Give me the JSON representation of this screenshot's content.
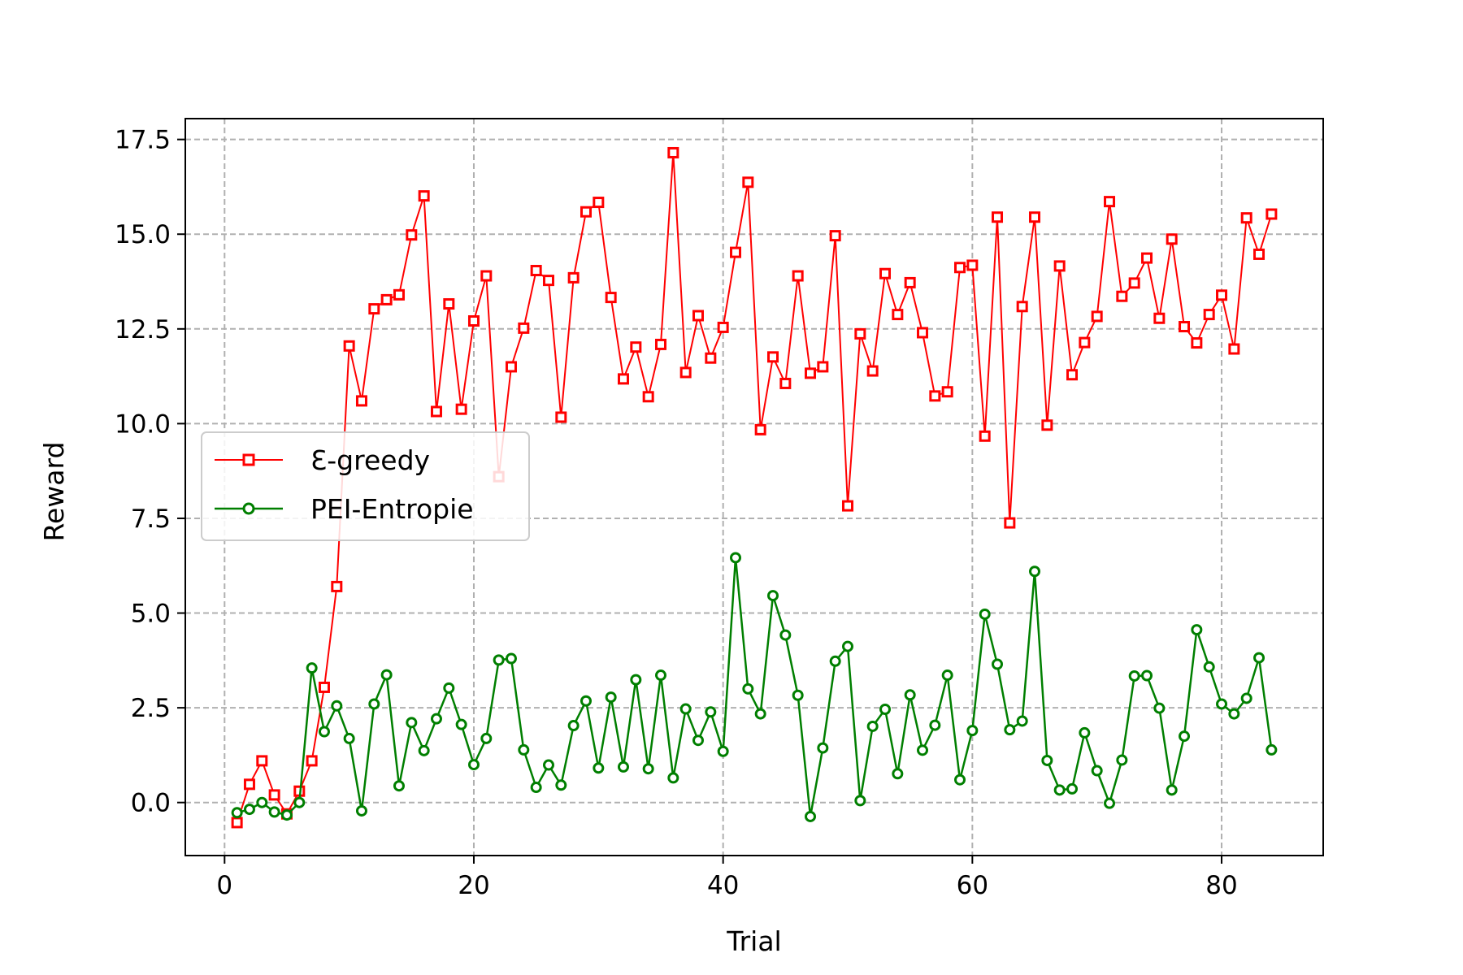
{
  "chart_data": {
    "type": "line",
    "xlabel": "Trial",
    "ylabel": "Reward",
    "xlim": [
      -3.15,
      88.15
    ],
    "ylim": [
      -1.4,
      18.05
    ],
    "xticks": [
      0,
      20,
      40,
      60,
      80
    ],
    "yticks": [
      0.0,
      2.5,
      5.0,
      7.5,
      10.0,
      12.5,
      15.0,
      17.5
    ],
    "xtick_labels": [
      "0",
      "20",
      "40",
      "60",
      "80"
    ],
    "ytick_labels": [
      "0.0",
      "2.5",
      "5.0",
      "7.5",
      "10.0",
      "12.5",
      "15.0",
      "17.5"
    ],
    "grid": true,
    "legend_position": "center-left",
    "x": [
      1,
      2,
      3,
      4,
      5,
      6,
      7,
      8,
      9,
      10,
      11,
      12,
      13,
      14,
      15,
      16,
      17,
      18,
      19,
      20,
      21,
      22,
      23,
      24,
      25,
      26,
      27,
      28,
      29,
      30,
      31,
      32,
      33,
      34,
      35,
      36,
      37,
      38,
      39,
      40,
      41,
      42,
      43,
      44,
      45,
      46,
      47,
      48,
      49,
      50,
      51,
      52,
      53,
      54,
      55,
      56,
      57,
      58,
      59,
      60,
      61,
      62,
      63,
      64,
      65,
      66,
      67,
      68,
      69,
      70,
      71,
      72,
      73,
      74,
      75,
      76,
      77,
      78,
      79,
      80,
      81,
      82,
      83,
      84
    ],
    "series": [
      {
        "name": "Ɛ-greedy",
        "color": "#ff0000",
        "marker": "square",
        "values": [
          -0.53,
          0.48,
          1.1,
          0.2,
          -0.3,
          0.3,
          1.1,
          3.04,
          5.7,
          12.05,
          10.6,
          13.03,
          13.27,
          13.4,
          14.98,
          16.01,
          10.32,
          13.16,
          10.38,
          12.71,
          13.9,
          8.6,
          11.5,
          12.52,
          14.04,
          13.78,
          10.17,
          13.85,
          15.59,
          15.84,
          13.33,
          11.18,
          12.02,
          10.71,
          12.09,
          17.15,
          11.35,
          12.85,
          11.73,
          12.54,
          14.52,
          16.37,
          9.84,
          11.76,
          11.06,
          13.9,
          11.33,
          11.5,
          14.96,
          7.83,
          12.37,
          11.39,
          13.96,
          12.88,
          13.72,
          12.4,
          10.73,
          10.84,
          14.12,
          14.18,
          9.67,
          15.45,
          7.38,
          13.09,
          15.45,
          9.96,
          14.16,
          11.29,
          12.14,
          12.83,
          15.86,
          13.36,
          13.71,
          14.37,
          12.78,
          14.87,
          12.56,
          12.13,
          12.88,
          13.39,
          11.97,
          15.43,
          14.47,
          15.53
        ]
      },
      {
        "name": "PEI-Entropie",
        "color": "#007f00",
        "marker": "circle",
        "values": [
          -0.27,
          -0.18,
          0.0,
          -0.25,
          -0.33,
          0.0,
          3.55,
          1.87,
          2.55,
          1.69,
          -0.22,
          2.6,
          3.37,
          0.44,
          2.11,
          1.37,
          2.21,
          3.02,
          2.06,
          1.0,
          1.69,
          3.76,
          3.8,
          1.39,
          0.4,
          0.99,
          0.46,
          2.03,
          2.68,
          0.91,
          2.78,
          0.94,
          3.24,
          0.89,
          3.36,
          0.65,
          2.47,
          1.64,
          2.39,
          1.35,
          6.46,
          3.0,
          2.34,
          5.46,
          4.42,
          2.83,
          -0.37,
          1.44,
          3.73,
          4.12,
          0.05,
          2.01,
          2.46,
          0.76,
          2.84,
          1.38,
          2.04,
          3.36,
          0.6,
          1.9,
          4.97,
          3.65,
          1.92,
          2.15,
          6.1,
          1.11,
          0.33,
          0.36,
          1.84,
          0.84,
          -0.02,
          1.12,
          3.34,
          3.35,
          2.49,
          0.33,
          1.75,
          4.56,
          3.58,
          2.6,
          2.34,
          2.75,
          3.82,
          1.39
        ]
      }
    ]
  }
}
